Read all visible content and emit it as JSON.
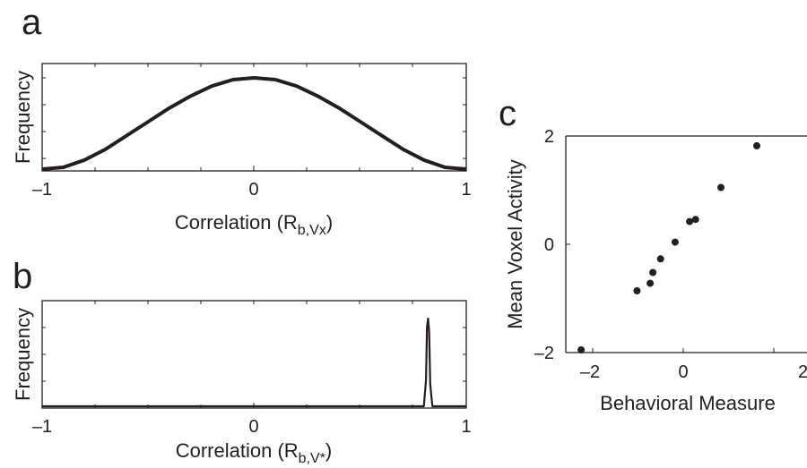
{
  "colors": {
    "ink": "#231f20",
    "background": "#ffffff"
  },
  "chart_data": [
    {
      "panel": "a",
      "type": "line",
      "xlabel": "Correlation (R",
      "xlabel_subscript": "b,Vx",
      "xlabel_suffix": ")",
      "ylabel": "Frequency",
      "xlim": [
        -1,
        1
      ],
      "xticks": [
        -1,
        0,
        1
      ],
      "xtick_labels": [
        "–1",
        "0",
        "1"
      ],
      "ytick_labels": [],
      "series": [
        {
          "x": [
            -1.0,
            -0.9,
            -0.8,
            -0.7,
            -0.6,
            -0.5,
            -0.4,
            -0.3,
            -0.2,
            -0.1,
            0.0,
            0.1,
            0.2,
            0.3,
            0.4,
            0.5,
            0.6,
            0.7,
            0.8,
            0.9,
            1.0
          ],
          "y": [
            0.0,
            0.02,
            0.1,
            0.22,
            0.37,
            0.52,
            0.67,
            0.8,
            0.91,
            0.98,
            1.0,
            0.98,
            0.91,
            0.8,
            0.67,
            0.52,
            0.37,
            0.22,
            0.1,
            0.02,
            0.0
          ]
        }
      ]
    },
    {
      "panel": "b",
      "type": "line",
      "xlabel": "Correlation (R",
      "xlabel_subscript": "b,V*",
      "xlabel_suffix": ")",
      "ylabel": "Frequency",
      "xlim": [
        -1,
        1
      ],
      "xticks": [
        -1,
        0,
        1
      ],
      "xtick_labels": [
        "–1",
        "0",
        "1"
      ],
      "ytick_labels": [],
      "series": [
        {
          "x": [
            -1.0,
            0.8,
            0.81,
            0.815,
            0.82,
            0.825,
            0.83,
            0.84,
            1.0
          ],
          "y": [
            0.0,
            0.0,
            0.3,
            0.9,
            1.0,
            0.85,
            0.25,
            0.0,
            0.0
          ]
        }
      ]
    },
    {
      "panel": "c",
      "type": "scatter",
      "xlabel": "Behavioral Measure",
      "ylabel": "Mean Voxel Activity",
      "xlim": [
        -2.3,
        2.2
      ],
      "ylim": [
        -2,
        2
      ],
      "xticks": [
        -2,
        0,
        2
      ],
      "xtick_labels": [
        "–2",
        "0",
        "2"
      ],
      "yticks": [
        -2,
        0,
        2
      ],
      "ytick_labels": [
        "–2",
        "0",
        "2"
      ],
      "x": [
        -2.25,
        -1.02,
        -0.73,
        -0.67,
        -0.5,
        -0.18,
        0.14,
        0.27,
        0.83,
        1.62
      ],
      "y": [
        -1.95,
        -0.86,
        -0.72,
        -0.52,
        -0.27,
        0.04,
        0.42,
        0.46,
        1.05,
        1.82
      ]
    }
  ]
}
